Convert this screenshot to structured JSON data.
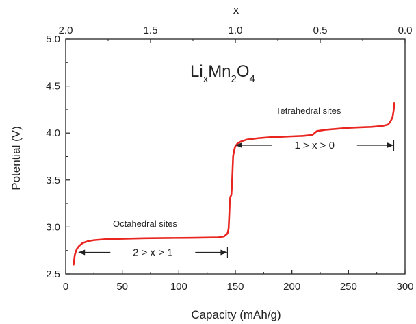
{
  "chart_data": {
    "type": "line",
    "xlabel": "Capacity (mAh/g)",
    "ylabel": "Potential (V)",
    "top_xlabel": "x",
    "xlim": [
      0,
      300
    ],
    "ylim": [
      2.5,
      5.0
    ],
    "top_xlim": [
      2.0,
      0.0
    ],
    "x_ticks": [
      0,
      50,
      100,
      150,
      200,
      250,
      300
    ],
    "y_ticks": [
      2.5,
      3.0,
      3.5,
      4.0,
      4.5,
      5.0
    ],
    "top_x_ticks": [
      "2.0",
      "1.5",
      "1.0",
      "0.5",
      "0.0"
    ],
    "x_tick_labels": [
      "0",
      "50",
      "100",
      "150",
      "200",
      "250",
      "300"
    ],
    "y_tick_labels": [
      "2.5",
      "3.0",
      "3.5",
      "4.0",
      "4.5",
      "5.0"
    ],
    "series": [
      {
        "color": "#e8251f",
        "x": [
          7,
          7.5,
          8,
          9,
          10,
          12,
          15,
          20,
          25,
          35,
          50,
          70,
          90,
          110,
          125,
          135,
          140,
          143,
          144,
          144.5,
          145,
          145.5,
          146,
          146.5,
          147,
          147.5,
          148,
          149,
          150,
          152,
          155,
          160,
          170,
          180,
          190,
          200,
          210,
          218,
          220,
          222,
          230,
          240,
          250,
          260,
          270,
          280,
          285,
          287,
          289,
          290,
          290.5
        ],
        "y": [
          2.6,
          2.65,
          2.7,
          2.74,
          2.77,
          2.8,
          2.83,
          2.85,
          2.86,
          2.87,
          2.875,
          2.88,
          2.883,
          2.885,
          2.888,
          2.89,
          2.9,
          2.93,
          2.98,
          3.1,
          3.25,
          3.32,
          3.33,
          3.35,
          3.45,
          3.6,
          3.75,
          3.82,
          3.86,
          3.89,
          3.91,
          3.93,
          3.945,
          3.955,
          3.96,
          3.965,
          3.97,
          3.98,
          4.0,
          4.02,
          4.035,
          4.045,
          4.055,
          4.06,
          4.065,
          4.075,
          4.09,
          4.12,
          4.17,
          4.25,
          4.32
        ]
      }
    ],
    "annotations": {
      "formula": {
        "base1": "Li",
        "sub1": "x",
        "base2": "Mn",
        "sub2": "2",
        "base3": "O",
        "sub3": "4"
      },
      "tetrahedral_label": "Tetrahedral sites",
      "octahedral_label": "Octahedral sites",
      "range_upper_label": "1 > x > 0",
      "range_lower_label": "2 > x > 1",
      "range_upper": {
        "x_start": 150,
        "x_end": 290,
        "y": 3.87
      },
      "range_lower": {
        "x_start": 11,
        "x_end": 143,
        "y": 2.73
      }
    }
  }
}
